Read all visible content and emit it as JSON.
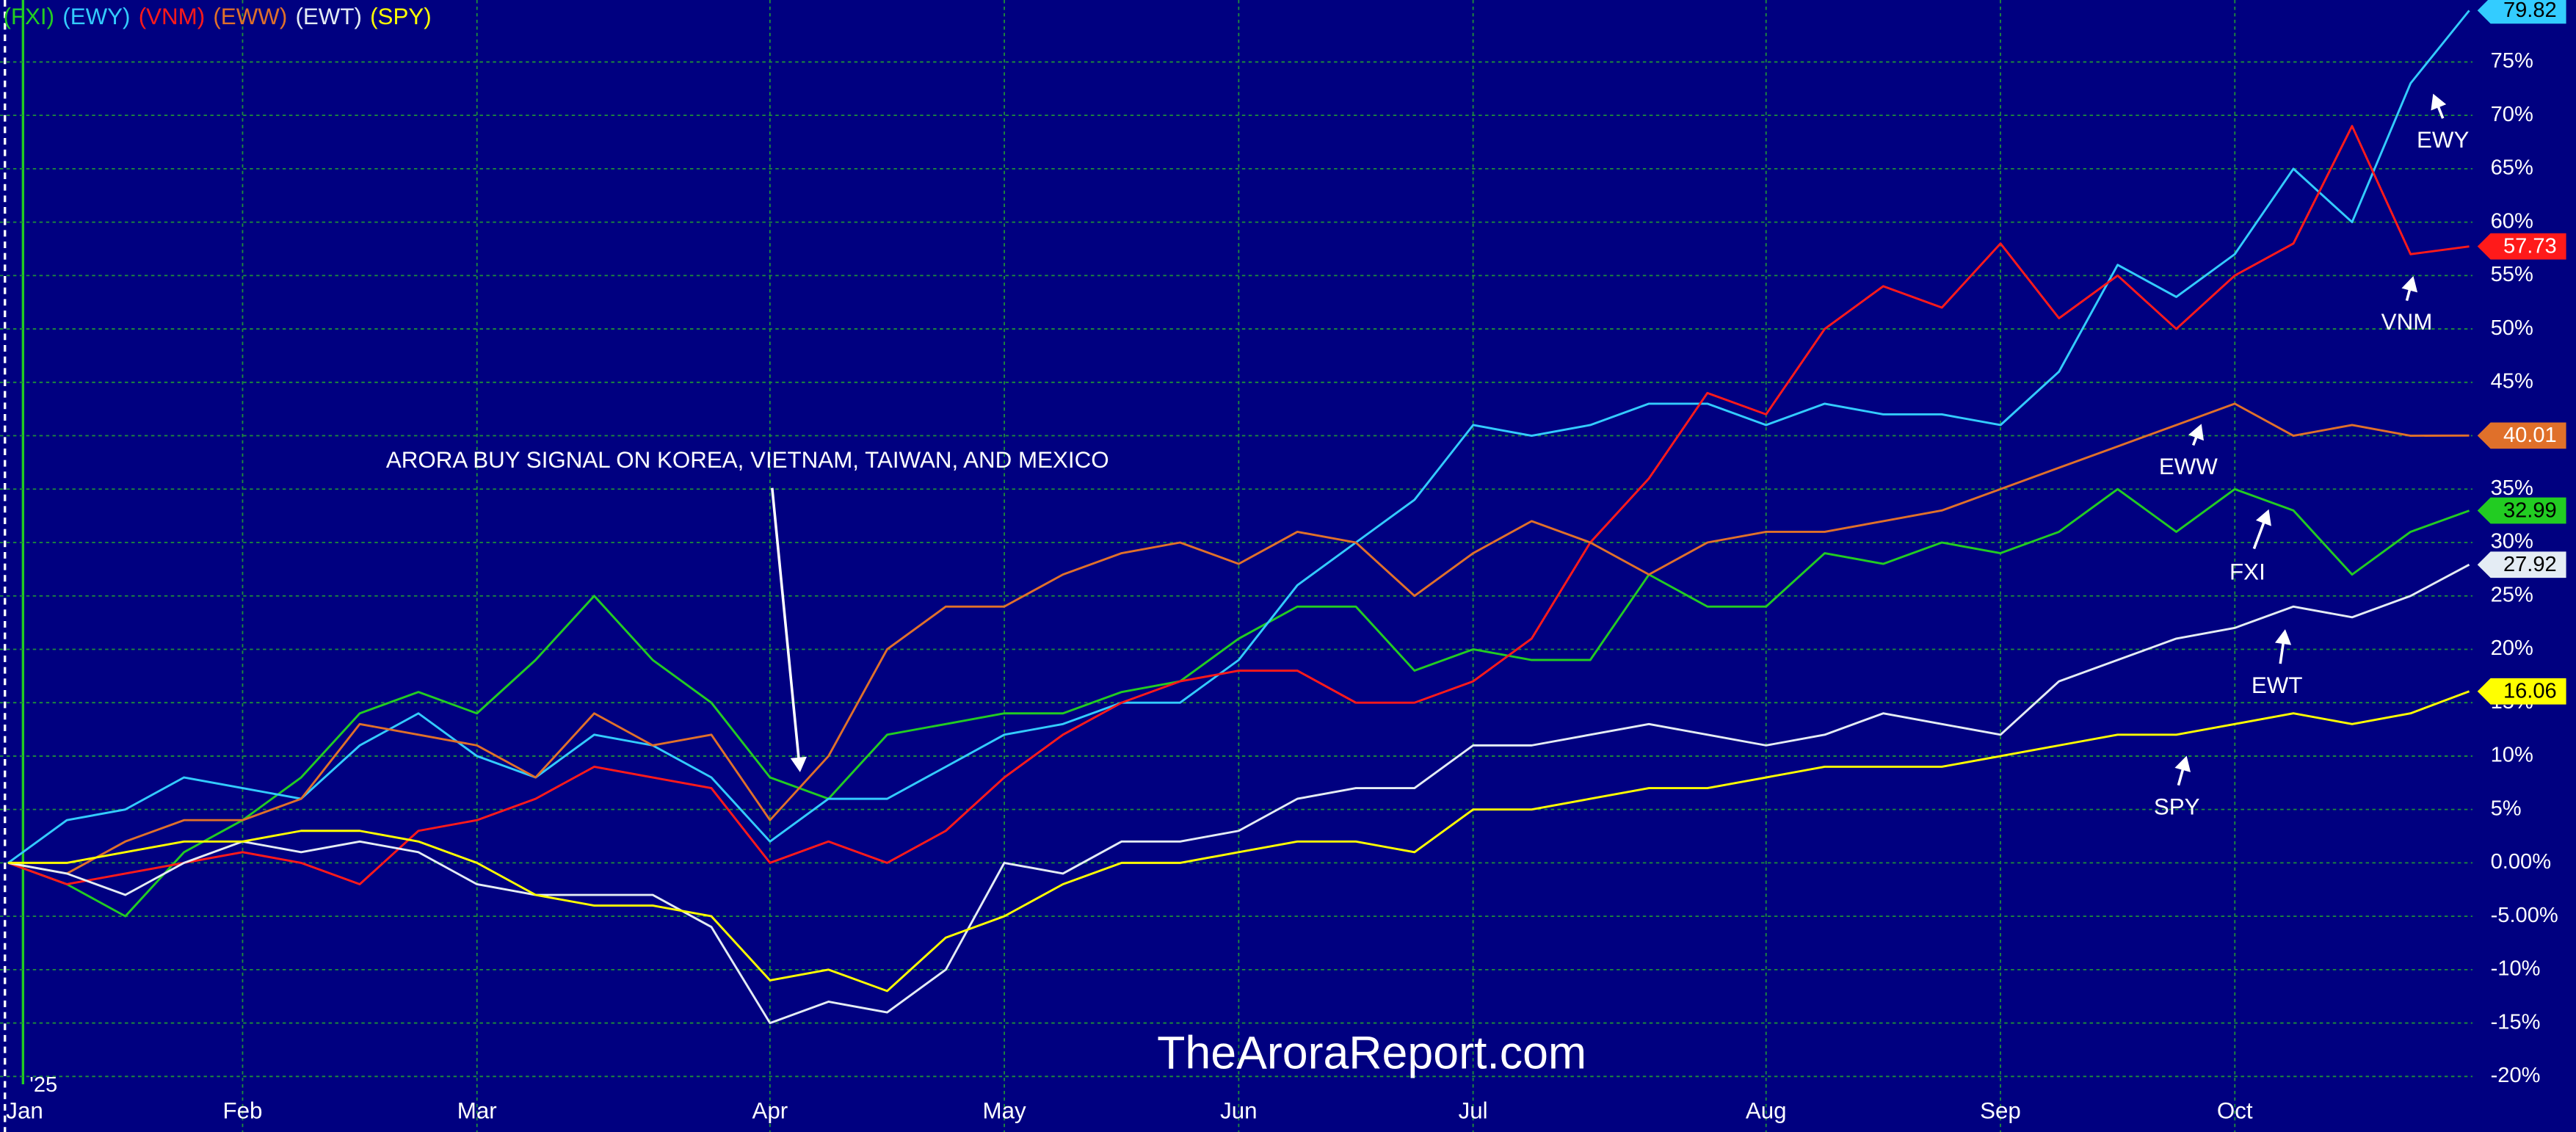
{
  "chart_data": {
    "type": "line",
    "categories": [
      "Jan",
      null,
      null,
      null,
      "Feb",
      null,
      null,
      null,
      "Mar",
      null,
      null,
      null,
      null,
      "Apr",
      null,
      null,
      null,
      "May",
      null,
      null,
      null,
      "Jun",
      null,
      null,
      null,
      "Jul",
      null,
      null,
      null,
      null,
      "Aug",
      null,
      null,
      null,
      "Sep",
      null,
      null,
      null,
      "Oct",
      null,
      null,
      null,
      null
    ],
    "series": [
      {
        "name": "(FXI)",
        "color": "#22cc22",
        "values": [
          0,
          -2,
          -5,
          1,
          4,
          8,
          14,
          16,
          14,
          19,
          25,
          19,
          15,
          8,
          6,
          12,
          13,
          14,
          14,
          16,
          17,
          21,
          24,
          24,
          18,
          20,
          19,
          19,
          27,
          24,
          24,
          29,
          28,
          30,
          29,
          31,
          35,
          31,
          35,
          33,
          27,
          31,
          32.99
        ]
      },
      {
        "name": "(EWY)",
        "color": "#33ccff",
        "values": [
          0,
          4,
          5,
          8,
          7,
          6,
          11,
          14,
          10,
          8,
          12,
          11,
          8,
          2,
          6,
          6,
          9,
          12,
          13,
          15,
          15,
          19,
          26,
          30,
          34,
          41,
          40,
          41,
          43,
          43,
          41,
          43,
          42,
          42,
          41,
          46,
          56,
          53,
          57,
          65,
          60,
          73,
          79.82
        ]
      },
      {
        "name": "(VNM)",
        "color": "#ff1a1a",
        "values": [
          0,
          -2,
          -1,
          0,
          1,
          0,
          -2,
          3,
          4,
          6,
          9,
          8,
          7,
          0,
          2,
          0,
          3,
          8,
          12,
          15,
          17,
          18,
          18,
          15,
          15,
          17,
          21,
          30,
          36,
          44,
          42,
          50,
          54,
          52,
          58,
          51,
          55,
          50,
          55,
          58,
          69,
          57,
          57.73
        ]
      },
      {
        "name": "(EWW)",
        "color": "#e0702a",
        "values": [
          0,
          -1,
          2,
          4,
          4,
          6,
          13,
          12,
          11,
          8,
          14,
          11,
          12,
          4,
          10,
          20,
          24,
          24,
          27,
          29,
          30,
          28,
          31,
          30,
          25,
          29,
          32,
          30,
          27,
          30,
          31,
          31,
          32,
          33,
          35,
          37,
          39,
          41,
          43,
          40,
          41,
          40,
          40.01
        ]
      },
      {
        "name": "(EWT)",
        "color": "#e4ecf4",
        "values": [
          0,
          -1,
          -3,
          0,
          2,
          1,
          2,
          1,
          -2,
          -3,
          -3,
          -3,
          -6,
          -15,
          -13,
          -14,
          -10,
          0,
          -1,
          2,
          2,
          3,
          6,
          7,
          7,
          11,
          11,
          12,
          13,
          12,
          11,
          12,
          14,
          13,
          12,
          17,
          19,
          21,
          22,
          24,
          23,
          25,
          27.92
        ]
      },
      {
        "name": "(SPY)",
        "color": "#ffff00",
        "values": [
          0,
          0,
          1,
          2,
          2,
          3,
          3,
          2,
          0,
          -3,
          -4,
          -4,
          -5,
          -11,
          -10,
          -12,
          -7,
          -5,
          -2,
          0,
          0,
          1,
          2,
          2,
          1,
          5,
          5,
          6,
          7,
          7,
          8,
          9,
          9,
          9,
          10,
          11,
          12,
          12,
          13,
          14,
          13,
          14,
          16.06
        ]
      }
    ],
    "ylim": [
      -25.2,
      80.8
    ],
    "yticks": [
      {
        "value": -20,
        "label": "-20%"
      },
      {
        "value": -15,
        "label": "-15%"
      },
      {
        "value": -10,
        "label": "-10%"
      },
      {
        "value": -5,
        "label": "-5.00%"
      },
      {
        "value": 0,
        "label": "0.00%"
      },
      {
        "value": 5,
        "label": "5%"
      },
      {
        "value": 10,
        "label": "10%"
      },
      {
        "value": 15,
        "label": "15%"
      },
      {
        "value": 20,
        "label": "20%"
      },
      {
        "value": 25,
        "label": "25%"
      },
      {
        "value": 30,
        "label": "30%"
      },
      {
        "value": 35,
        "label": "35%"
      },
      {
        "value": 40,
        "label": "40%"
      },
      {
        "value": 45,
        "label": "45%"
      },
      {
        "value": 50,
        "label": "50%"
      },
      {
        "value": 55,
        "label": "55%"
      },
      {
        "value": 60,
        "label": "60%"
      },
      {
        "value": 65,
        "label": "65%"
      },
      {
        "value": 70,
        "label": "70%"
      },
      {
        "value": 75,
        "label": "75%"
      }
    ],
    "grid": true,
    "annotations": [
      "ARORA BUY SIGNAL ON KOREA, VIETNAM, TAIWAN, AND MEXICO",
      "EWY",
      "VNM",
      "EWW",
      "FXI",
      "EWT",
      "SPY",
      "TheAroraReport.com",
      "'25"
    ]
  }
}
